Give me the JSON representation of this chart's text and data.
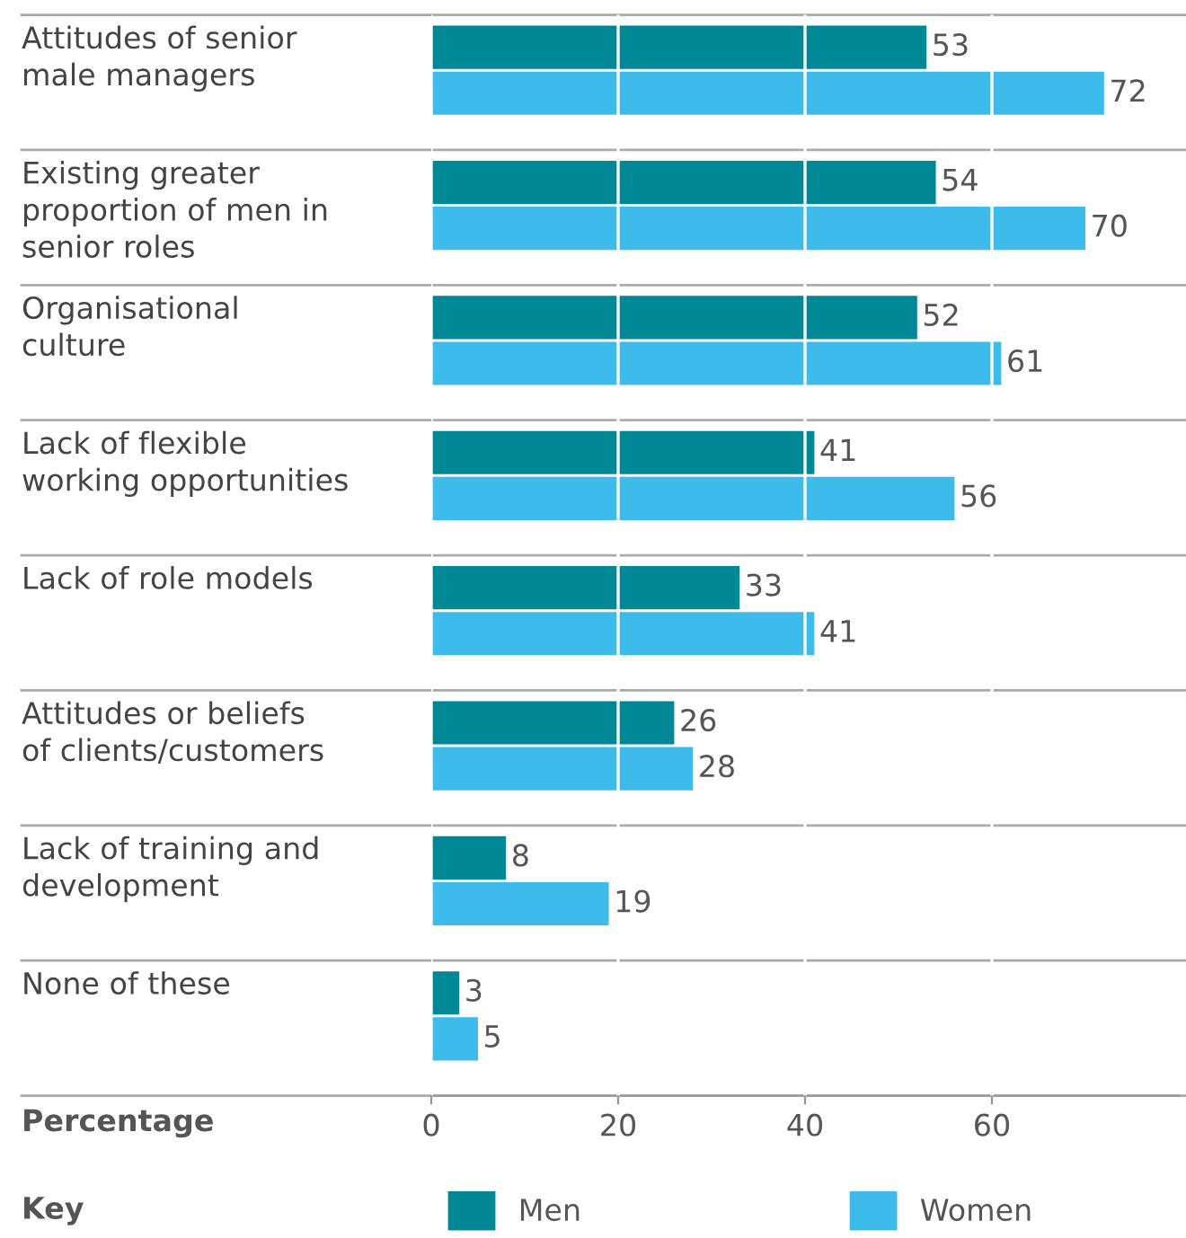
{
  "chart_data": {
    "type": "bar",
    "orientation": "horizontal",
    "categories": [
      "Attitudes of senior\nmale managers",
      "Existing greater\nproportion of men in\nsenior roles",
      "Organisational\nculture",
      "Lack of flexible\nworking opportunities",
      "Lack of role models",
      "Attitudes or beliefs\nof clients/customers",
      "Lack of training and\ndevelopment",
      "None of these"
    ],
    "series": [
      {
        "name": "Men",
        "color": "#008896",
        "values": [
          53,
          54,
          52,
          41,
          33,
          26,
          8,
          3
        ]
      },
      {
        "name": "Women",
        "color": "#3dbbeb",
        "values": [
          72,
          70,
          61,
          56,
          41,
          28,
          19,
          5
        ]
      }
    ],
    "xlabel": "Percentage",
    "legend_title": "Key",
    "xlim": [
      0,
      80
    ],
    "xticks": [
      0,
      20,
      40,
      60
    ],
    "grid": "x",
    "data_labels": true,
    "legend": "bottom"
  }
}
